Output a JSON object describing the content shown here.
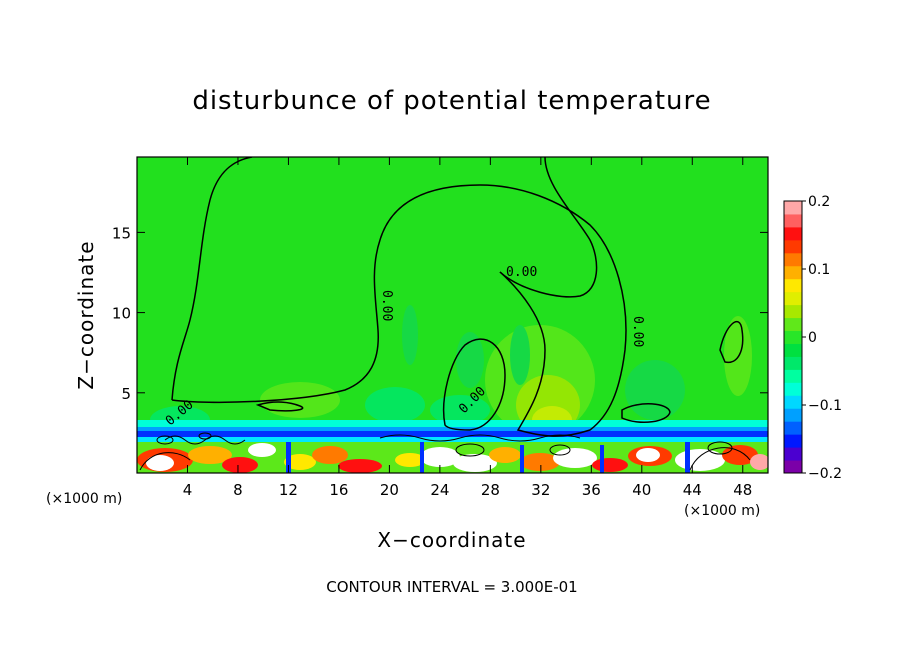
{
  "chart_data": {
    "type": "heatmap",
    "title": "disturbunce of potential temperature",
    "xlabel": "X−coordinate",
    "ylabel": "Z−coordinate",
    "x_unit_label": "(×1000 m)",
    "x_ticks": [
      "4",
      "8",
      "12",
      "16",
      "20",
      "24",
      "28",
      "32",
      "36",
      "40",
      "44",
      "48"
    ],
    "y_ticks": [
      "5",
      "10",
      "15"
    ],
    "xlim": [
      0,
      50
    ],
    "ylim": [
      0,
      19.7
    ],
    "colorbar": {
      "range": [
        -0.2,
        0.2
      ],
      "tick_labels": [
        "0.2",
        "0.1",
        "0",
        "−0.1",
        "−0.2"
      ],
      "colors": [
        "#7b00a8",
        "#4b00d0",
        "#0018ff",
        "#0060ff",
        "#00a0ff",
        "#00d8ff",
        "#00ffd8",
        "#00ffa0",
        "#00e86a",
        "#00e040",
        "#28e628",
        "#60e81a",
        "#a8e800",
        "#e0ee00",
        "#ffe800",
        "#ffb000",
        "#ff7a00",
        "#ff3a00",
        "#ff1010",
        "#ff6060",
        "#ffa8a8"
      ]
    },
    "contour_label": "0.00",
    "footnote": "CONTOUR INTERVAL = 3.000E-01",
    "colors": {
      "background_field": "#22e01e"
    }
  }
}
